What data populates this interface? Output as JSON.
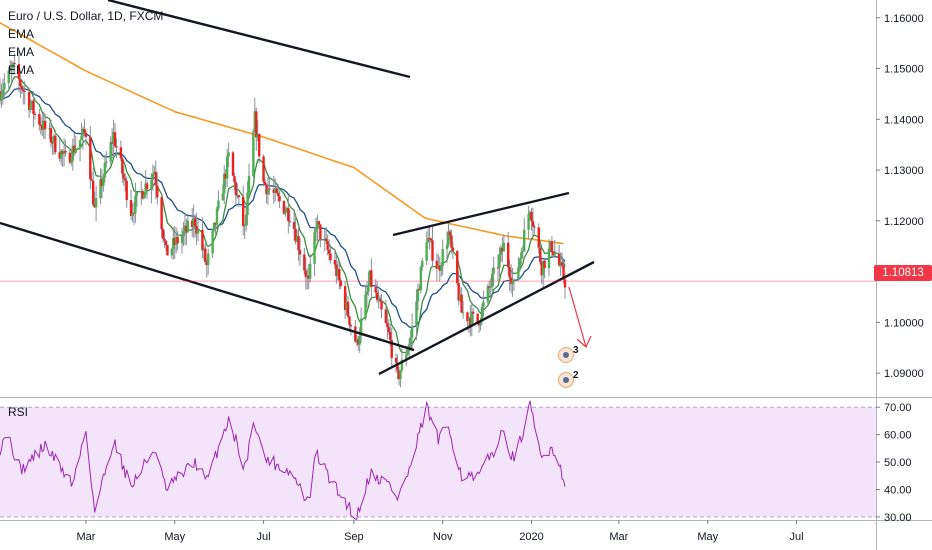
{
  "chart_data": {
    "type": "candlestick",
    "title": "Euro / U.S. Dollar, 1D, FXCM",
    "indicators": [
      "EMA",
      "EMA",
      "EMA"
    ],
    "y_axis": {
      "ticks": [
        "1.16000",
        "1.15000",
        "1.14000",
        "1.13000",
        "1.12000",
        "1.11000",
        "1.10000",
        "1.09000"
      ],
      "tick_values": [
        1.16,
        1.15,
        1.14,
        1.13,
        1.12,
        1.11,
        1.1,
        1.09
      ],
      "range": [
        1.0855,
        1.1635
      ]
    },
    "x_axis": {
      "ticks": [
        "Mar",
        "May",
        "Jul",
        "Sep",
        "Nov",
        "2020",
        "Mar",
        "May",
        "Jul"
      ]
    },
    "last_price": "1.10813",
    "price_series_waypoints": [
      {
        "x": "2019-01-01",
        "y": 1.1455
      },
      {
        "x": "2019-01-10",
        "y": 1.15
      },
      {
        "x": "2019-01-25",
        "y": 1.141
      },
      {
        "x": "2019-02-15",
        "y": 1.132
      },
      {
        "x": "2019-03-01",
        "y": 1.1375
      },
      {
        "x": "2019-03-07",
        "y": 1.122
      },
      {
        "x": "2019-03-20",
        "y": 1.137
      },
      {
        "x": "2019-04-01",
        "y": 1.122
      },
      {
        "x": "2019-04-17",
        "y": 1.13
      },
      {
        "x": "2019-04-25",
        "y": 1.1135
      },
      {
        "x": "2019-05-15",
        "y": 1.12
      },
      {
        "x": "2019-05-23",
        "y": 1.111
      },
      {
        "x": "2019-06-07",
        "y": 1.1325
      },
      {
        "x": "2019-06-18",
        "y": 1.118
      },
      {
        "x": "2019-06-25",
        "y": 1.14
      },
      {
        "x": "2019-07-01",
        "y": 1.1275
      },
      {
        "x": "2019-07-20",
        "y": 1.121
      },
      {
        "x": "2019-08-01",
        "y": 1.1075
      },
      {
        "x": "2019-08-06",
        "y": 1.1195
      },
      {
        "x": "2019-08-20",
        "y": 1.11
      },
      {
        "x": "2019-09-03",
        "y": 1.0955
      },
      {
        "x": "2019-09-12",
        "y": 1.1085
      },
      {
        "x": "2019-09-25",
        "y": 1.0975
      },
      {
        "x": "2019-10-01",
        "y": 1.089
      },
      {
        "x": "2019-10-10",
        "y": 1.097
      },
      {
        "x": "2019-10-21",
        "y": 1.117
      },
      {
        "x": "2019-10-29",
        "y": 1.1105
      },
      {
        "x": "2019-11-05",
        "y": 1.1175
      },
      {
        "x": "2019-11-14",
        "y": 1.102
      },
      {
        "x": "2019-11-25",
        "y": 1.1
      },
      {
        "x": "2019-12-13",
        "y": 1.115
      },
      {
        "x": "2019-12-20",
        "y": 1.107
      },
      {
        "x": "2019-12-31",
        "y": 1.123
      },
      {
        "x": "2020-01-08",
        "y": 1.111
      },
      {
        "x": "2020-01-15",
        "y": 1.115
      },
      {
        "x": "2020-01-24",
        "y": 1.1081
      }
    ],
    "ema_200_waypoints": [
      {
        "x": "2019-01-01",
        "y": 1.159
      },
      {
        "x": "2019-03-01",
        "y": 1.1495
      },
      {
        "x": "2019-05-01",
        "y": 1.1415
      },
      {
        "x": "2019-07-01",
        "y": 1.1365
      },
      {
        "x": "2019-09-01",
        "y": 1.1305
      },
      {
        "x": "2019-10-20",
        "y": 1.1205
      },
      {
        "x": "2019-12-15",
        "y": 1.117
      },
      {
        "x": "2020-01-24",
        "y": 1.1155
      }
    ],
    "rsi": {
      "label": "RSI",
      "ticks": [
        "70.00",
        "60.00",
        "50.00",
        "40.00",
        "30.00"
      ],
      "tick_values": [
        70,
        60,
        50,
        40,
        30
      ],
      "band": [
        30,
        70
      ],
      "range": [
        28.5,
        73
      ],
      "waypoints": [
        {
          "x": "2019-01-01",
          "y": 55
        },
        {
          "x": "2019-01-05",
          "y": 62
        },
        {
          "x": "2019-01-15",
          "y": 47
        },
        {
          "x": "2019-02-01",
          "y": 56
        },
        {
          "x": "2019-02-20",
          "y": 42
        },
        {
          "x": "2019-03-01",
          "y": 62
        },
        {
          "x": "2019-03-07",
          "y": 32
        },
        {
          "x": "2019-03-20",
          "y": 58
        },
        {
          "x": "2019-04-01",
          "y": 41
        },
        {
          "x": "2019-04-17",
          "y": 55
        },
        {
          "x": "2019-04-25",
          "y": 40
        },
        {
          "x": "2019-05-15",
          "y": 50
        },
        {
          "x": "2019-05-23",
          "y": 43
        },
        {
          "x": "2019-06-07",
          "y": 66
        },
        {
          "x": "2019-06-18",
          "y": 48
        },
        {
          "x": "2019-06-25",
          "y": 65
        },
        {
          "x": "2019-07-01",
          "y": 52
        },
        {
          "x": "2019-07-20",
          "y": 46
        },
        {
          "x": "2019-08-01",
          "y": 35
        },
        {
          "x": "2019-08-06",
          "y": 53
        },
        {
          "x": "2019-08-20",
          "y": 40
        },
        {
          "x": "2019-09-03",
          "y": 30
        },
        {
          "x": "2019-09-12",
          "y": 46
        },
        {
          "x": "2019-09-25",
          "y": 42
        },
        {
          "x": "2019-10-01",
          "y": 37
        },
        {
          "x": "2019-10-10",
          "y": 48
        },
        {
          "x": "2019-10-21",
          "y": 70
        },
        {
          "x": "2019-10-29",
          "y": 58
        },
        {
          "x": "2019-11-05",
          "y": 63
        },
        {
          "x": "2019-11-14",
          "y": 45
        },
        {
          "x": "2019-11-25",
          "y": 44
        },
        {
          "x": "2019-12-13",
          "y": 61
        },
        {
          "x": "2019-12-20",
          "y": 50
        },
        {
          "x": "2019-12-31",
          "y": 70
        },
        {
          "x": "2020-01-08",
          "y": 51
        },
        {
          "x": "2020-01-15",
          "y": 56
        },
        {
          "x": "2020-01-24",
          "y": 43
        }
      ]
    },
    "annotations": {
      "event_badges": [
        "3",
        "2"
      ]
    },
    "colors": {
      "bull": "#4caf50",
      "bear": "#ef1f1f",
      "ema_fast": "#388e3c",
      "ema_mid": "#1d4e89",
      "ema_slow": "#f59a23",
      "rsi_line": "#9c27b0",
      "rsi_band": "#f3e4fb",
      "price_line": "#f23645"
    }
  }
}
